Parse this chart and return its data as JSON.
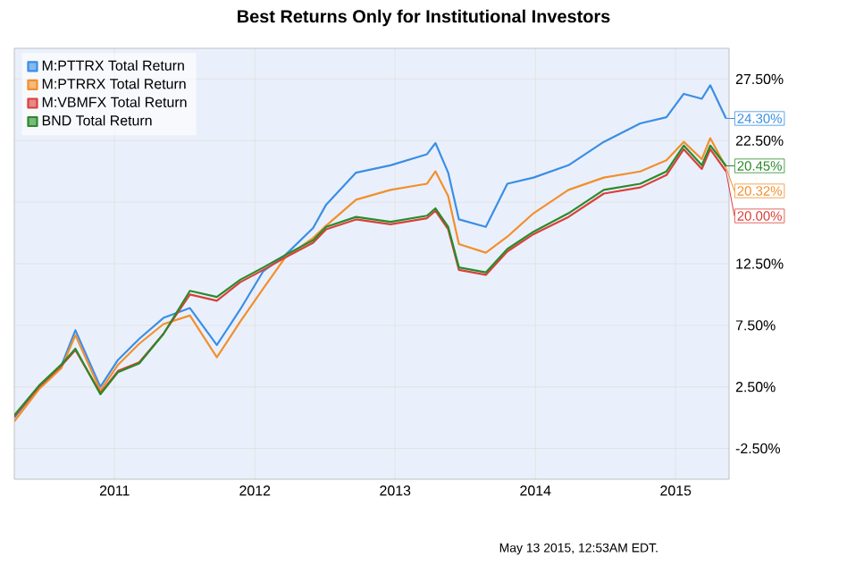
{
  "chart_data": {
    "type": "line",
    "title": "Best Returns Only for Institutional Investors",
    "x": [
      "2010-04-15",
      "2010-06-18",
      "2010-08-15",
      "2010-09-21",
      "2010-11-25",
      "2011-01-10",
      "2011-03-06",
      "2011-05-08",
      "2011-07-16",
      "2011-09-24",
      "2011-11-24",
      "2012-01-23",
      "2012-03-20",
      "2012-06-01",
      "2012-07-05",
      "2012-09-21",
      "2012-12-20",
      "2013-03-25",
      "2013-04-16",
      "2013-05-19",
      "2013-06-16",
      "2013-08-25",
      "2013-10-20",
      "2013-12-27",
      "2014-03-28",
      "2014-06-28",
      "2014-10-01",
      "2014-12-08",
      "2015-01-22",
      "2015-03-10",
      "2015-04-01",
      "2015-05-12"
    ],
    "series": [
      {
        "name": "M:PTTRX Total Return",
        "color": "#3a8ee6",
        "value_labels": [
          null,
          null,
          null,
          null,
          null,
          null,
          null,
          null,
          null,
          null,
          null,
          null,
          null,
          null,
          null,
          null,
          null,
          null,
          null,
          null,
          null,
          null,
          null,
          null,
          null,
          null,
          null,
          null,
          null,
          null,
          null,
          "24.30%"
        ],
        "values": [
          0,
          2.5,
          4.2,
          7.1,
          2.5,
          4.7,
          6.4,
          8.1,
          8.9,
          5.9,
          8.8,
          11.9,
          13.2,
          15.4,
          17.3,
          19.9,
          20.5,
          21.4,
          22.3,
          19.9,
          16.1,
          15.5,
          19.0,
          19.5,
          20.5,
          22.4,
          23.9,
          24.4,
          26.3,
          25.9,
          27.0,
          24.3
        ]
      },
      {
        "name": "M:PTRRX Total Return",
        "color": "#f28f2c",
        "value_labels": [
          null,
          null,
          null,
          null,
          null,
          null,
          null,
          null,
          null,
          null,
          null,
          null,
          null,
          null,
          null,
          null,
          null,
          null,
          null,
          null,
          null,
          null,
          null,
          null,
          null,
          null,
          null,
          null,
          null,
          null,
          null,
          "20.32%"
        ],
        "values": [
          -0.3,
          2.3,
          4.0,
          6.7,
          2.2,
          4.3,
          6.0,
          7.6,
          8.3,
          4.9,
          7.8,
          10.5,
          13.0,
          14.6,
          15.6,
          17.7,
          18.5,
          19.0,
          20.0,
          18.0,
          14.1,
          13.4,
          14.7,
          16.6,
          18.5,
          19.5,
          20.0,
          20.9,
          22.4,
          21.0,
          22.7,
          20.32
        ]
      },
      {
        "name": "M:VBMFX Total Return",
        "color": "#d9403a",
        "value_labels": [
          null,
          null,
          null,
          null,
          null,
          null,
          null,
          null,
          null,
          null,
          null,
          null,
          null,
          null,
          null,
          null,
          null,
          null,
          null,
          null,
          null,
          null,
          null,
          null,
          null,
          null,
          null,
          null,
          null,
          null,
          null,
          "20.00%"
        ],
        "values": [
          0.1,
          2.5,
          4.2,
          5.5,
          2.0,
          3.8,
          4.5,
          6.8,
          10.0,
          9.5,
          11.0,
          12.0,
          13.0,
          14.2,
          15.3,
          16.1,
          15.7,
          16.2,
          16.8,
          15.3,
          12.0,
          11.6,
          13.5,
          14.9,
          16.3,
          18.2,
          18.7,
          19.7,
          21.8,
          20.2,
          21.8,
          20.0
        ]
      },
      {
        "name": "BND Total Return",
        "color": "#2a8a2a",
        "value_labels": [
          null,
          null,
          null,
          null,
          null,
          null,
          null,
          null,
          null,
          null,
          null,
          null,
          null,
          null,
          null,
          null,
          null,
          null,
          null,
          null,
          null,
          null,
          null,
          null,
          null,
          null,
          null,
          null,
          null,
          null,
          null,
          "20.45%"
        ],
        "values": [
          0.2,
          2.6,
          4.3,
          5.6,
          1.9,
          3.7,
          4.4,
          6.8,
          10.3,
          9.8,
          11.2,
          12.2,
          13.2,
          14.4,
          15.5,
          16.3,
          15.9,
          16.4,
          17.0,
          15.5,
          12.2,
          11.8,
          13.7,
          15.1,
          16.6,
          18.5,
          19.0,
          20.0,
          22.1,
          20.5,
          22.1,
          20.45
        ]
      }
    ],
    "xlim": [
      "2010-04-15",
      "2015-05-20"
    ],
    "ylim": [
      -5,
      30
    ],
    "xticks": [
      {
        "value": "2011-01-01",
        "label": "2011"
      },
      {
        "value": "2012-01-01",
        "label": "2012"
      },
      {
        "value": "2013-01-01",
        "label": "2013"
      },
      {
        "value": "2014-01-01",
        "label": "2014"
      },
      {
        "value": "2015-01-01",
        "label": "2015"
      }
    ],
    "yticks": [
      {
        "value": -2.5,
        "label": "-2.50%"
      },
      {
        "value": 2.5,
        "label": "2.50%"
      },
      {
        "value": 7.5,
        "label": "7.50%"
      },
      {
        "value": 12.5,
        "label": "12.50%"
      },
      {
        "value": 17.5,
        "label": null
      },
      {
        "value": 22.5,
        "label": "22.50%"
      },
      {
        "value": 27.5,
        "label": "27.50%"
      }
    ],
    "grid": true,
    "legend": "top left",
    "annotations": [
      "May 13 2015, 12:53AM EDT."
    ]
  }
}
